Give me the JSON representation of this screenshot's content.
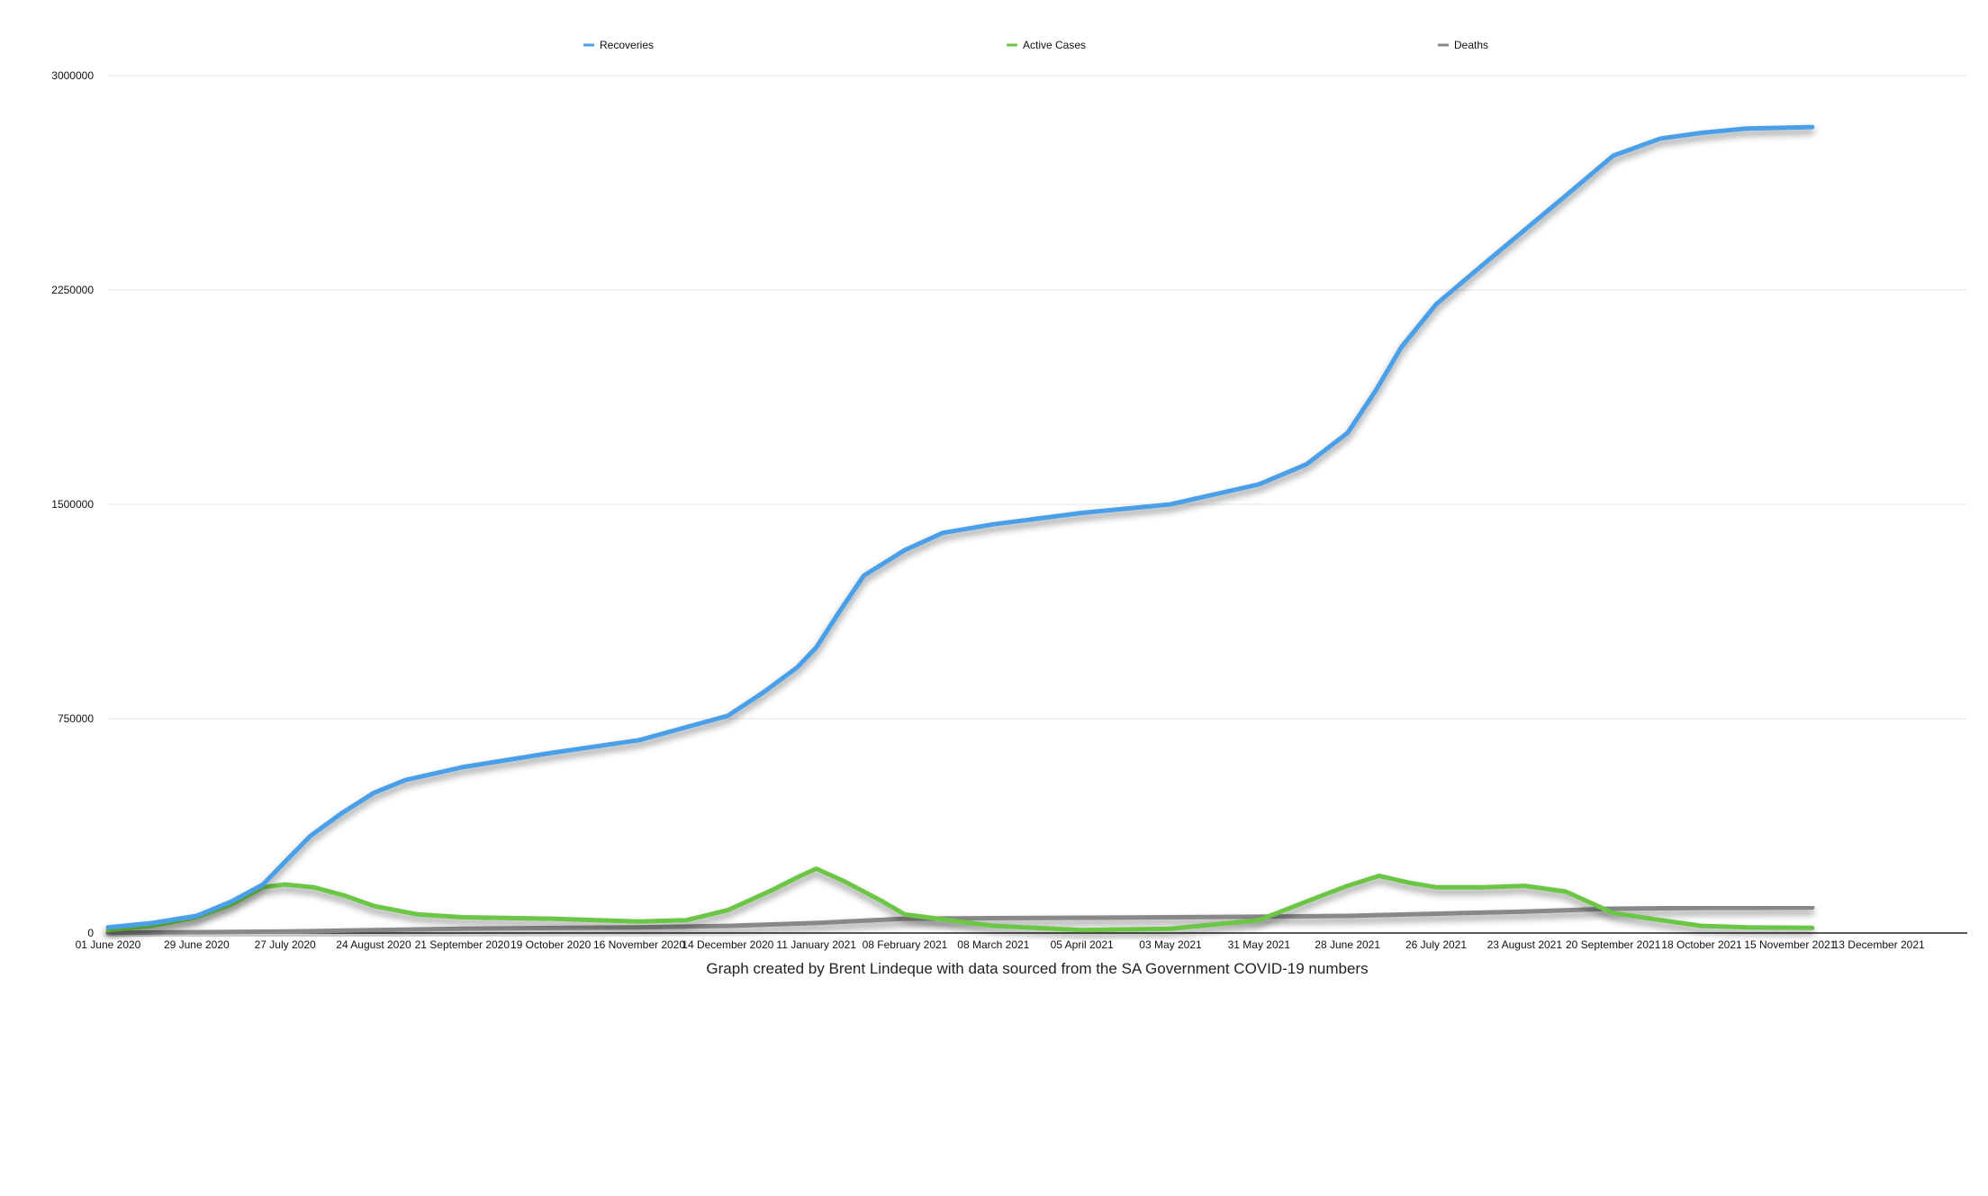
{
  "chart_data": {
    "type": "line",
    "caption": "Graph created by Brent Lindeque with data sourced from the SA Government COVID-19 numbers",
    "ylim": [
      0,
      3000000
    ],
    "y_ticks": [
      "0",
      "750000",
      "1500000",
      "2250000",
      "3000000"
    ],
    "x_ticks": [
      "01 June 2020",
      "29 June 2020",
      "27 July 2020",
      "24 August 2020",
      "21 September 2020",
      "19 October 2020",
      "16 November 2020",
      "14 December 2020",
      "11 January 2021",
      "08 February 2021",
      "08 March 2021",
      "05 April 2021",
      "03 May 2021",
      "31 May 2021",
      "28 June 2021",
      "26 July 2021",
      "23 August 2021",
      "20 September 2021",
      "18 October 2021",
      "15 November 2021",
      "13 December 2021"
    ],
    "xlim": [
      "2020-06-01",
      "2022-01-10"
    ],
    "grid": true,
    "legend_position": "top",
    "series": [
      {
        "name": "Recoveries",
        "color": "#4a9fe8",
        "points": [
          [
            "2020-06-01",
            20000
          ],
          [
            "2020-06-15",
            35000
          ],
          [
            "2020-06-29",
            60000
          ],
          [
            "2020-07-10",
            110000
          ],
          [
            "2020-07-20",
            170000
          ],
          [
            "2020-07-27",
            250000
          ],
          [
            "2020-08-04",
            340000
          ],
          [
            "2020-08-14",
            420000
          ],
          [
            "2020-08-24",
            490000
          ],
          [
            "2020-09-03",
            535000
          ],
          [
            "2020-09-21",
            580000
          ],
          [
            "2020-10-19",
            630000
          ],
          [
            "2020-11-16",
            675000
          ],
          [
            "2020-12-14",
            760000
          ],
          [
            "2020-12-25",
            840000
          ],
          [
            "2021-01-05",
            930000
          ],
          [
            "2021-01-11",
            1000000
          ],
          [
            "2021-01-18",
            1120000
          ],
          [
            "2021-01-26",
            1250000
          ],
          [
            "2021-02-08",
            1340000
          ],
          [
            "2021-02-20",
            1400000
          ],
          [
            "2021-03-08",
            1430000
          ],
          [
            "2021-04-05",
            1470000
          ],
          [
            "2021-05-03",
            1500000
          ],
          [
            "2021-05-31",
            1570000
          ],
          [
            "2021-06-15",
            1640000
          ],
          [
            "2021-06-28",
            1750000
          ],
          [
            "2021-07-07",
            1900000
          ],
          [
            "2021-07-15",
            2050000
          ],
          [
            "2021-07-26",
            2200000
          ],
          [
            "2021-08-10",
            2340000
          ],
          [
            "2021-08-23",
            2460000
          ],
          [
            "2021-09-05",
            2580000
          ],
          [
            "2021-09-20",
            2720000
          ],
          [
            "2021-10-05",
            2780000
          ],
          [
            "2021-10-18",
            2800000
          ],
          [
            "2021-11-01",
            2815000
          ],
          [
            "2021-11-22",
            2820000
          ]
        ]
      },
      {
        "name": "Active Cases",
        "color": "#6cc644",
        "points": [
          [
            "2020-06-01",
            10000
          ],
          [
            "2020-06-15",
            25000
          ],
          [
            "2020-06-29",
            55000
          ],
          [
            "2020-07-10",
            100000
          ],
          [
            "2020-07-20",
            160000
          ],
          [
            "2020-07-27",
            170000
          ],
          [
            "2020-08-05",
            160000
          ],
          [
            "2020-08-15",
            130000
          ],
          [
            "2020-08-24",
            95000
          ],
          [
            "2020-09-07",
            65000
          ],
          [
            "2020-09-21",
            55000
          ],
          [
            "2020-10-19",
            50000
          ],
          [
            "2020-11-16",
            40000
          ],
          [
            "2020-12-01",
            45000
          ],
          [
            "2020-12-14",
            80000
          ],
          [
            "2020-12-28",
            150000
          ],
          [
            "2021-01-06",
            200000
          ],
          [
            "2021-01-11",
            225000
          ],
          [
            "2021-01-20",
            180000
          ],
          [
            "2021-02-01",
            110000
          ],
          [
            "2021-02-08",
            65000
          ],
          [
            "2021-03-08",
            25000
          ],
          [
            "2021-04-05",
            10000
          ],
          [
            "2021-05-03",
            15000
          ],
          [
            "2021-05-31",
            45000
          ],
          [
            "2021-06-15",
            110000
          ],
          [
            "2021-06-28",
            165000
          ],
          [
            "2021-07-08",
            200000
          ],
          [
            "2021-07-18",
            175000
          ],
          [
            "2021-07-26",
            160000
          ],
          [
            "2021-08-10",
            160000
          ],
          [
            "2021-08-23",
            165000
          ],
          [
            "2021-09-05",
            145000
          ],
          [
            "2021-09-20",
            70000
          ],
          [
            "2021-10-05",
            45000
          ],
          [
            "2021-10-18",
            25000
          ],
          [
            "2021-11-01",
            20000
          ],
          [
            "2021-11-22",
            18000
          ]
        ]
      },
      {
        "name": "Deaths",
        "color": "#888888",
        "points": [
          [
            "2020-06-01",
            1000
          ],
          [
            "2020-07-27",
            5000
          ],
          [
            "2020-09-21",
            15000
          ],
          [
            "2020-11-16",
            20000
          ],
          [
            "2020-12-14",
            25000
          ],
          [
            "2021-01-11",
            35000
          ],
          [
            "2021-02-08",
            50000
          ],
          [
            "2021-03-08",
            52000
          ],
          [
            "2021-05-03",
            55000
          ],
          [
            "2021-05-31",
            57000
          ],
          [
            "2021-06-28",
            60000
          ],
          [
            "2021-08-23",
            75000
          ],
          [
            "2021-09-20",
            85000
          ],
          [
            "2021-10-18",
            88000
          ],
          [
            "2021-11-22",
            89000
          ]
        ]
      }
    ]
  }
}
